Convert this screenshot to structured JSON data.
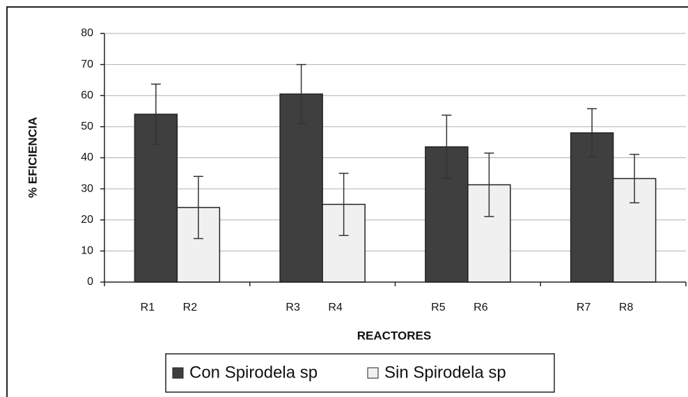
{
  "chart_data": {
    "type": "bar",
    "xlabel": "REACTORES",
    "ylabel": "% EFICIENCIA",
    "categories": [
      "R1",
      "R2",
      "R3",
      "R4",
      "R5",
      "R6",
      "R7",
      "R8"
    ],
    "series": [
      {
        "name": "Con Spirodela sp",
        "color": "#3f3f3f",
        "values": [
          54,
          null,
          60.5,
          null,
          43.5,
          null,
          48,
          null
        ],
        "errors": [
          9.7,
          null,
          9.5,
          null,
          10.2,
          null,
          7.8,
          null
        ]
      },
      {
        "name": "Sin Spirodela sp",
        "color": "#f0f0f0",
        "values": [
          null,
          24,
          null,
          25,
          null,
          31.3,
          null,
          33.3
        ],
        "errors": [
          null,
          10,
          null,
          10,
          null,
          10.2,
          null,
          7.8
        ]
      }
    ],
    "ylim": [
      0,
      80
    ],
    "yticks": [
      0,
      10,
      20,
      30,
      40,
      50,
      60,
      70,
      80
    ],
    "grid": true,
    "legend": "bottom"
  }
}
